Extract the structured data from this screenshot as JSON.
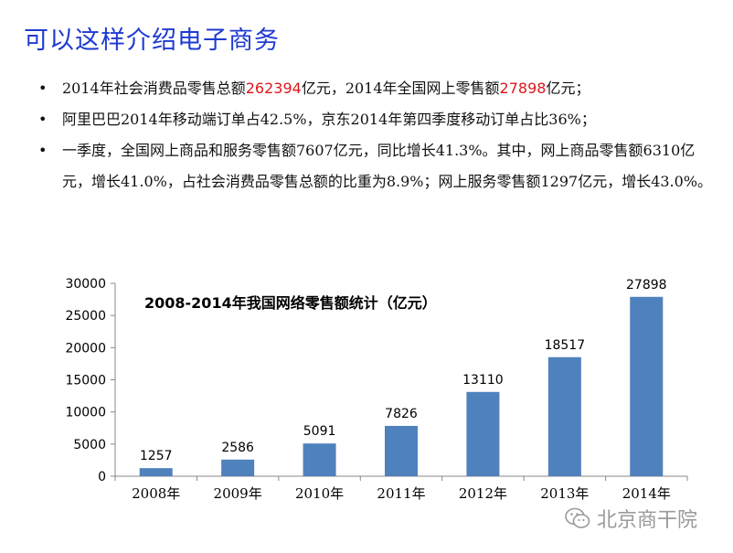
{
  "title": "可以这样介绍电子商务",
  "bullets": [
    {
      "parts": [
        {
          "t": "2014年社会消费品零售总额"
        },
        {
          "t": "262394",
          "red": true
        },
        {
          "t": "亿元，2014年全国网上零售额"
        },
        {
          "t": "27898",
          "red": true
        },
        {
          "t": "亿元；"
        }
      ]
    },
    {
      "parts": [
        {
          "t": "阿里巴巴2014年移动端订单占42.5%，京东2014年第四季度移动订单占比36%；"
        }
      ]
    },
    {
      "parts": [
        {
          "t": "一季度，全国网上商品和服务零售额7607亿元，同比增长41.3%。其中，网上商品零售额6310亿元，增长41.0%，占社会消费品零售总额的比重为8.9%；网上服务零售额1297亿元，增长43.0%。"
        }
      ]
    }
  ],
  "chart_data": {
    "type": "bar",
    "title": "2008-2014年我国网络零售额统计（亿元）",
    "categories": [
      "2008年",
      "2009年",
      "2010年",
      "2011年",
      "2012年",
      "2013年",
      "2014年"
    ],
    "values": [
      1257,
      2586,
      5091,
      7826,
      13110,
      18517,
      27898
    ],
    "yticks": [
      0,
      5000,
      10000,
      15000,
      20000,
      25000,
      30000
    ],
    "ylim": [
      0,
      30000
    ],
    "bar_color": "#4f81bd",
    "grid": false
  },
  "watermark": {
    "text": "北京商干院",
    "icon": "wechat-icon"
  }
}
